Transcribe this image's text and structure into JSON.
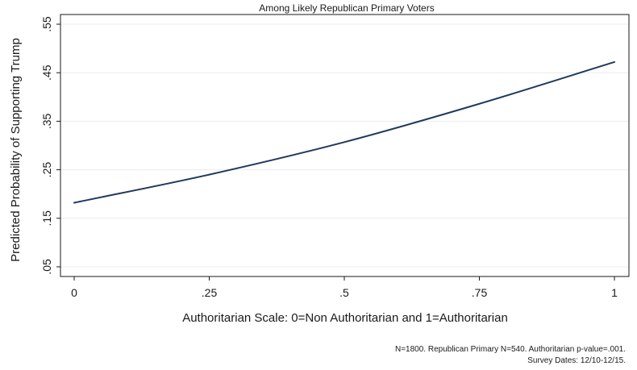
{
  "chart_data": {
    "type": "line",
    "title": "Among Likely Republican Primary Voters",
    "xlabel": "Authoritarian Scale: 0=Non Authoritarian and 1=Authoritarian",
    "ylabel": "Predicted Probability of Supporting Trump",
    "xlim": [
      0,
      1
    ],
    "ylim": [
      0.03,
      0.57
    ],
    "x_ticks": [
      {
        "value": 0,
        "label": "0"
      },
      {
        "value": 0.25,
        "label": ".25"
      },
      {
        "value": 0.5,
        "label": ".5"
      },
      {
        "value": 0.75,
        "label": ".75"
      },
      {
        "value": 1,
        "label": "1"
      }
    ],
    "y_ticks": [
      {
        "value": 0.05,
        "label": ".05"
      },
      {
        "value": 0.15,
        "label": ".15"
      },
      {
        "value": 0.25,
        "label": ".25"
      },
      {
        "value": 0.35,
        "label": ".35"
      },
      {
        "value": 0.45,
        "label": ".45"
      },
      {
        "value": 0.55,
        "label": ".55"
      }
    ],
    "grid": "horizontal",
    "legend": "none",
    "series": [
      {
        "x": [
          0,
          0.25,
          0.5,
          0.75,
          1
        ],
        "y": [
          0.182,
          0.24,
          0.307,
          0.386,
          0.472
        ],
        "color": "#1f3a5c"
      }
    ],
    "footnotes": [
      "N=1800. Republican Primary N=540. Authoritarian p-value=.001.",
      "Survey Dates: 12/10-12/15."
    ]
  }
}
